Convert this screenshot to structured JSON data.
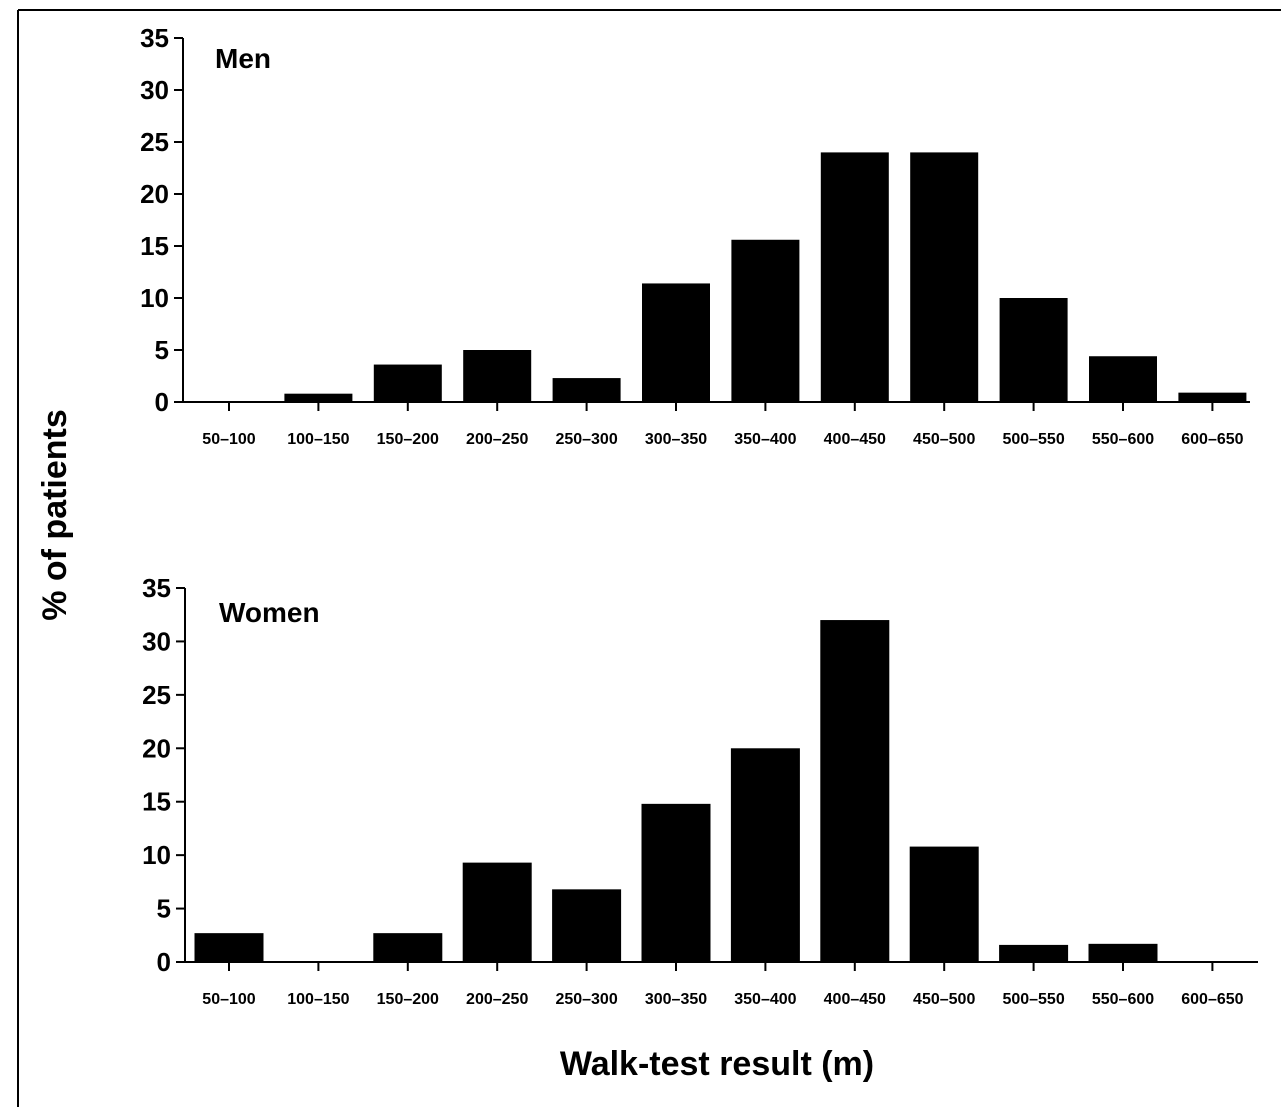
{
  "figure": {
    "ylabel": "% of patients",
    "xlabel": "Walk-test result (m)"
  },
  "chart_data": [
    {
      "type": "bar",
      "title": "Men",
      "categories": [
        "50–100",
        "100–150",
        "150–200",
        "200–250",
        "250–300",
        "300–350",
        "350–400",
        "400–450",
        "450–500",
        "500–550",
        "550–600",
        "600–650"
      ],
      "values": [
        0,
        0.8,
        3.6,
        5.0,
        2.3,
        11.4,
        15.6,
        24.0,
        24.0,
        10.0,
        4.4,
        0.9
      ],
      "ylim": [
        0,
        35
      ],
      "yticks": [
        0,
        5,
        10,
        15,
        20,
        25,
        30,
        35
      ],
      "grid": false,
      "bar_color": "#000000"
    },
    {
      "type": "bar",
      "title": "Women",
      "categories": [
        "50–100",
        "100–150",
        "150–200",
        "200–250",
        "250–300",
        "300–350",
        "350–400",
        "400–450",
        "450–500",
        "500–550",
        "550–600",
        "600–650"
      ],
      "values": [
        2.7,
        0,
        2.7,
        9.3,
        6.8,
        14.8,
        20.0,
        32.0,
        10.8,
        1.6,
        1.7,
        0
      ],
      "ylim": [
        0,
        35
      ],
      "yticks": [
        0,
        5,
        10,
        15,
        20,
        25,
        30,
        35
      ],
      "grid": false,
      "bar_color": "#000000"
    }
  ]
}
